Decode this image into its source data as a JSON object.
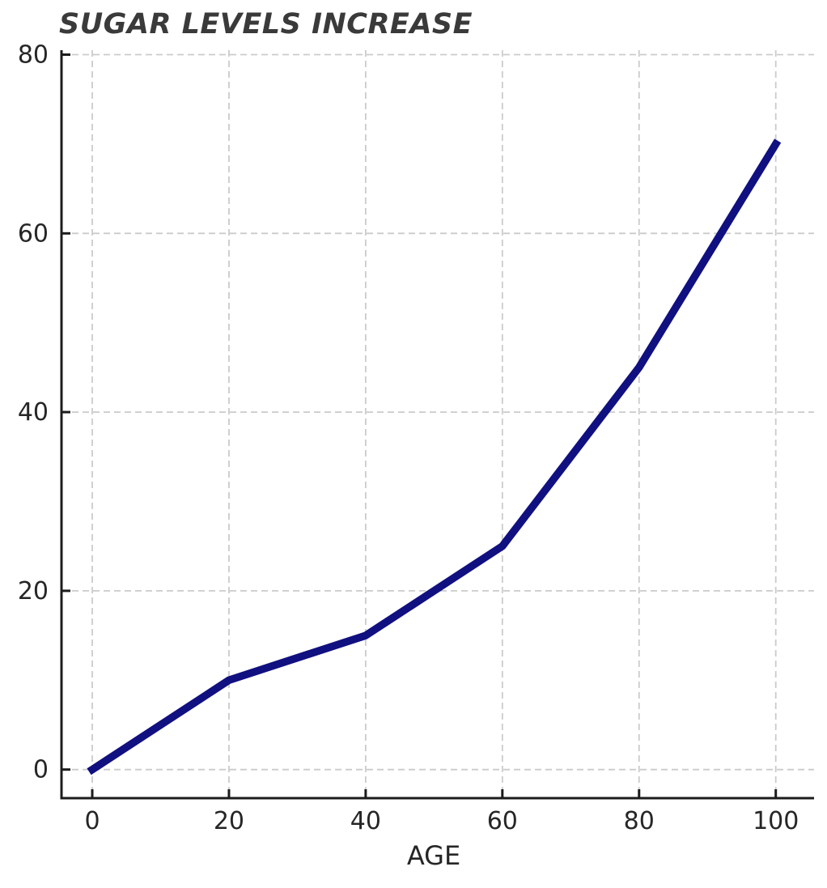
{
  "chart_data": {
    "type": "line",
    "title": "SUGAR LEVELS INCREASE",
    "xlabel": "AGE",
    "ylabel": "",
    "x": [
      0,
      20,
      40,
      60,
      80,
      100
    ],
    "y": [
      0,
      10,
      15,
      25,
      45,
      70
    ],
    "xticks": {
      "values": [
        0,
        20,
        40,
        60,
        80,
        100
      ],
      "labels": [
        "0",
        "20",
        "40",
        "60",
        "80",
        "100"
      ]
    },
    "yticks": {
      "values": [
        0,
        20,
        40,
        60,
        80
      ],
      "labels": [
        "0",
        "20",
        "40",
        "60",
        "80"
      ]
    },
    "xlim": [
      -4.5,
      105.6
    ],
    "ylim": [
      -3.2,
      80.5
    ],
    "grid": true,
    "grid_style": "dashed",
    "legend": false,
    "colors": {
      "line": "#101080",
      "grid": "#cbcbcb",
      "axis": "#1c1c1c",
      "tick_labels": "#262626",
      "title": "#3a3a3a",
      "background": "#ffffff"
    }
  }
}
